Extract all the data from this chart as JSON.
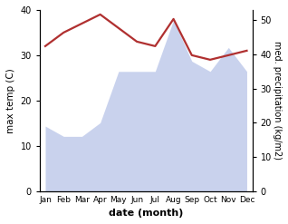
{
  "months": [
    "Jan",
    "Feb",
    "Mar",
    "Apr",
    "May",
    "Jun",
    "Jul",
    "Aug",
    "Sep",
    "Oct",
    "Nov",
    "Dec"
  ],
  "month_positions": [
    0,
    1,
    2,
    3,
    4,
    5,
    6,
    7,
    8,
    9,
    10,
    11
  ],
  "temperature": [
    32,
    35,
    37,
    39,
    36,
    33,
    32,
    38,
    30,
    29,
    30,
    31
  ],
  "precipitation": [
    19,
    16,
    16,
    20,
    35,
    35,
    35,
    50,
    38,
    35,
    42,
    35
  ],
  "temp_color": "#b03030",
  "precip_color": "#b8c4e8",
  "precip_alpha": 0.75,
  "title": "",
  "xlabel": "date (month)",
  "ylabel_left": "max temp (C)",
  "ylabel_right": "med. precipitation (kg/m2)",
  "ylim_left": [
    0,
    40
  ],
  "ylim_right": [
    0,
    53
  ],
  "temp_linewidth": 1.6,
  "bg_color": "#ffffff"
}
